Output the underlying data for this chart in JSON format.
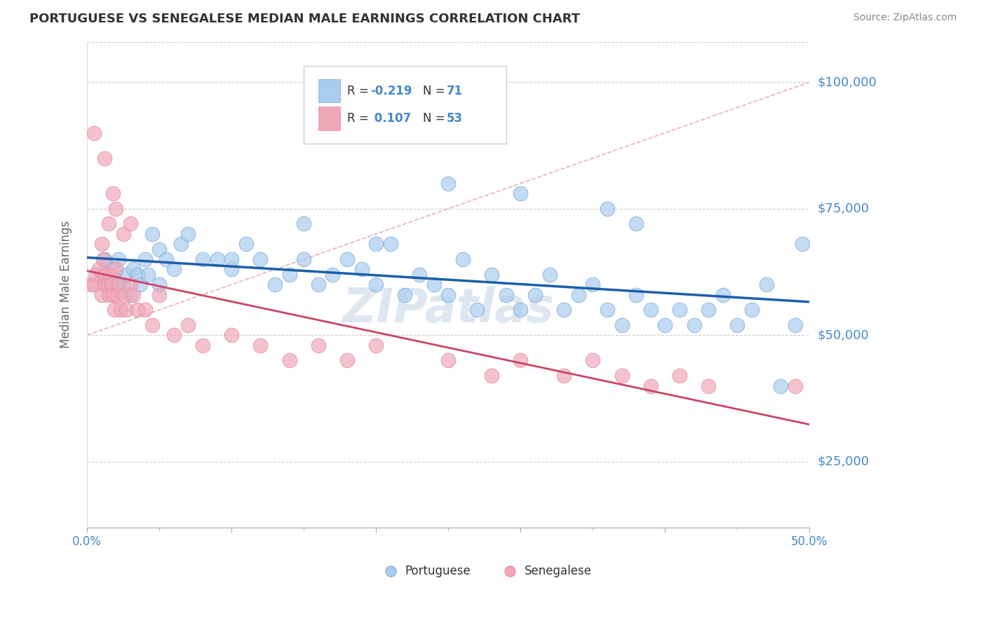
{
  "title": "PORTUGUESE VS SENEGALESE MEDIAN MALE EARNINGS CORRELATION CHART",
  "source": "Source: ZipAtlas.com",
  "ylabel_axis": "Median Male Earnings",
  "ylabel_ticks": [
    25000,
    50000,
    75000,
    100000
  ],
  "ylabel_labels": [
    "$25,000",
    "$50,000",
    "$75,000",
    "$100,000"
  ],
  "xlim": [
    0.0,
    50.0
  ],
  "ylim": [
    12000,
    108000
  ],
  "portuguese_color": "#aaccee",
  "senegalese_color": "#f0a8b8",
  "trend_portuguese_color": "#1a5faa",
  "trend_senegalese_color": "#cc4466",
  "ref_line_color": "#ddaaaa",
  "grid_color": "#cccccc",
  "axis_label_color": "#4488cc",
  "title_color": "#333333",
  "source_color": "#888888",
  "watermark": "ZIPatlas",
  "watermark_color": "#c8d8e8",
  "legend_border_color": "#cccccc",
  "legend_r1_val": "-0.219",
  "legend_n1_val": "71",
  "legend_r2_val": "0.107",
  "legend_n2_val": "53",
  "port_x": [
    1.0,
    1.2,
    1.5,
    1.8,
    2.0,
    2.2,
    2.5,
    2.7,
    3.0,
    3.2,
    3.5,
    3.7,
    4.0,
    4.2,
    4.5,
    5.0,
    5.5,
    6.0,
    6.5,
    7.0,
    8.0,
    9.0,
    10.0,
    11.0,
    12.0,
    13.0,
    14.0,
    15.0,
    16.0,
    17.0,
    18.0,
    19.0,
    20.0,
    21.0,
    22.0,
    23.0,
    24.0,
    25.0,
    26.0,
    27.0,
    28.0,
    29.0,
    30.0,
    31.0,
    32.0,
    33.0,
    34.0,
    35.0,
    36.0,
    37.0,
    38.0,
    39.0,
    40.0,
    41.0,
    42.0,
    43.0,
    44.0,
    45.0,
    46.0,
    47.0,
    48.0,
    49.0,
    49.5,
    38.0,
    36.0,
    30.0,
    25.0,
    20.0,
    15.0,
    10.0,
    5.0
  ],
  "port_y": [
    62000,
    65000,
    60000,
    63000,
    61000,
    65000,
    60000,
    62000,
    58000,
    63000,
    62000,
    60000,
    65000,
    62000,
    70000,
    67000,
    65000,
    63000,
    68000,
    70000,
    65000,
    65000,
    63000,
    68000,
    65000,
    60000,
    62000,
    65000,
    60000,
    62000,
    65000,
    63000,
    60000,
    68000,
    58000,
    62000,
    60000,
    58000,
    65000,
    55000,
    62000,
    58000,
    55000,
    58000,
    62000,
    55000,
    58000,
    60000,
    55000,
    52000,
    58000,
    55000,
    52000,
    55000,
    52000,
    55000,
    58000,
    52000,
    55000,
    60000,
    40000,
    52000,
    68000,
    72000,
    75000,
    78000,
    80000,
    68000,
    72000,
    65000,
    60000
  ],
  "sen_x": [
    0.3,
    0.5,
    0.6,
    0.8,
    1.0,
    1.1,
    1.2,
    1.3,
    1.4,
    1.5,
    1.6,
    1.7,
    1.8,
    1.9,
    2.0,
    2.1,
    2.2,
    2.3,
    2.5,
    2.7,
    3.0,
    3.2,
    3.5,
    4.0,
    4.5,
    5.0,
    6.0,
    7.0,
    8.0,
    10.0,
    12.0,
    14.0,
    16.0,
    18.0,
    20.0,
    25.0,
    28.0,
    30.0,
    33.0,
    35.0,
    37.0,
    39.0,
    41.0,
    43.0,
    49.0,
    1.0,
    1.5,
    2.0,
    2.5,
    3.0,
    0.5,
    1.2,
    1.8
  ],
  "sen_y": [
    60000,
    60000,
    62000,
    63000,
    58000,
    65000,
    60000,
    62000,
    60000,
    58000,
    62000,
    60000,
    58000,
    55000,
    63000,
    58000,
    60000,
    55000,
    58000,
    55000,
    60000,
    58000,
    55000,
    55000,
    52000,
    58000,
    50000,
    52000,
    48000,
    50000,
    48000,
    45000,
    48000,
    45000,
    48000,
    45000,
    42000,
    45000,
    42000,
    45000,
    42000,
    40000,
    42000,
    40000,
    40000,
    68000,
    72000,
    75000,
    70000,
    72000,
    90000,
    85000,
    78000
  ]
}
